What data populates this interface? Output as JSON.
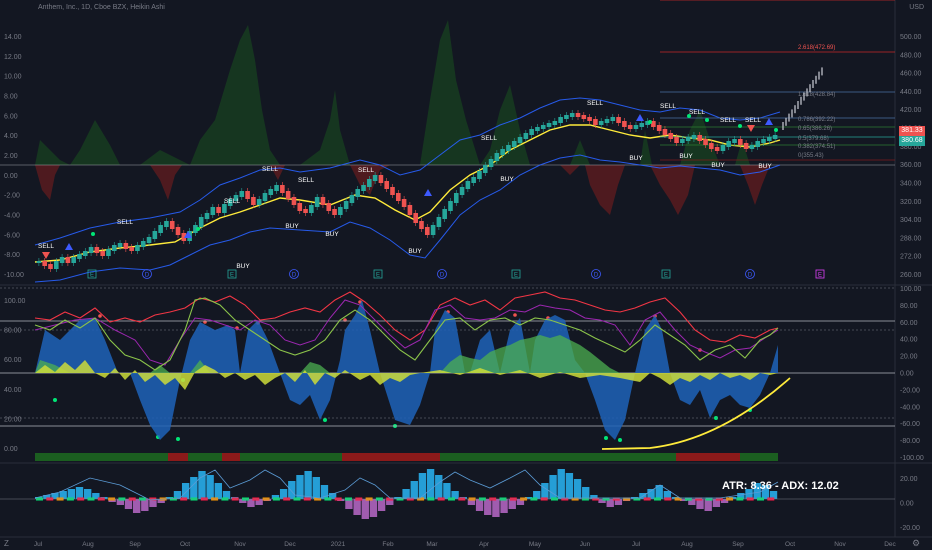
{
  "header": {
    "title": "Anthem, Inc., 1D, Cboe BZX, Heikin Ashi",
    "currency": "USD"
  },
  "price_tags": {
    "current": "381.33",
    "secondary": "380.68",
    "current_color": "#ef5350",
    "secondary_color": "#26a69a"
  },
  "left_axis_main": [
    "14.00",
    "12.00",
    "10.00",
    "8.00",
    "6.00",
    "4.00",
    "2.00",
    "0.00",
    "-2.00",
    "-4.00",
    "-6.00",
    "-8.00",
    "-10.00"
  ],
  "right_axis_main": [
    "500.00",
    "480.00",
    "460.00",
    "440.00",
    "420.00",
    "400.00",
    "380.00",
    "360.00",
    "340.00",
    "320.00",
    "304.00",
    "288.00",
    "272.00",
    "260.00"
  ],
  "left_axis_osc": [
    "100.00",
    "80.00",
    "60.00",
    "40.00",
    "20.00",
    "0.00"
  ],
  "right_axis_osc": [
    "100.00",
    "80.00",
    "60.00",
    "40.00",
    "20.00",
    "0.00",
    "-20.00",
    "-40.00",
    "-60.00",
    "-80.00",
    "-100.00"
  ],
  "right_axis_bottom": [
    "20.00",
    "0.00",
    "-20.00"
  ],
  "months": [
    "Jul",
    "Aug",
    "Sep",
    "Oct",
    "Nov",
    "Dec",
    "2021",
    "Feb",
    "Mar",
    "Apr",
    "May",
    "Jun",
    "Jul",
    "Aug",
    "Sep",
    "Oct",
    "Nov",
    "Dec"
  ],
  "signals_sell": [
    "SELL",
    "SELL",
    "SELL",
    "SELL",
    "SELL",
    "SELL",
    "SELL",
    "SELL",
    "SELL",
    "SELL",
    "SELL",
    "SELL"
  ],
  "signals_buy": [
    "BUY",
    "BUY",
    "BUY",
    "BUY",
    "BUY",
    "BUY",
    "BUY",
    "BUY",
    "BUY"
  ],
  "event_markers": [
    "E",
    "D",
    "E",
    "D",
    "E",
    "D",
    "E",
    "D",
    "E",
    "D",
    "E"
  ],
  "fib_labels": [
    "0.786(392.22)",
    "0.65(386.26)",
    "0.5(379.68)",
    "0.382(374.51)",
    "0(355.43)",
    "1.618(428.84)",
    "2.618(472.69)"
  ],
  "atr_text": "ATR: 8.36 - ADX: 12.02",
  "toolbar": {
    "left_icon": "Z",
    "right_icon": "⚙"
  },
  "colors": {
    "background": "#131722",
    "up": "#26a69a",
    "down": "#ef5350",
    "ma": "#ffeb3b",
    "band": "#2962ff"
  }
}
